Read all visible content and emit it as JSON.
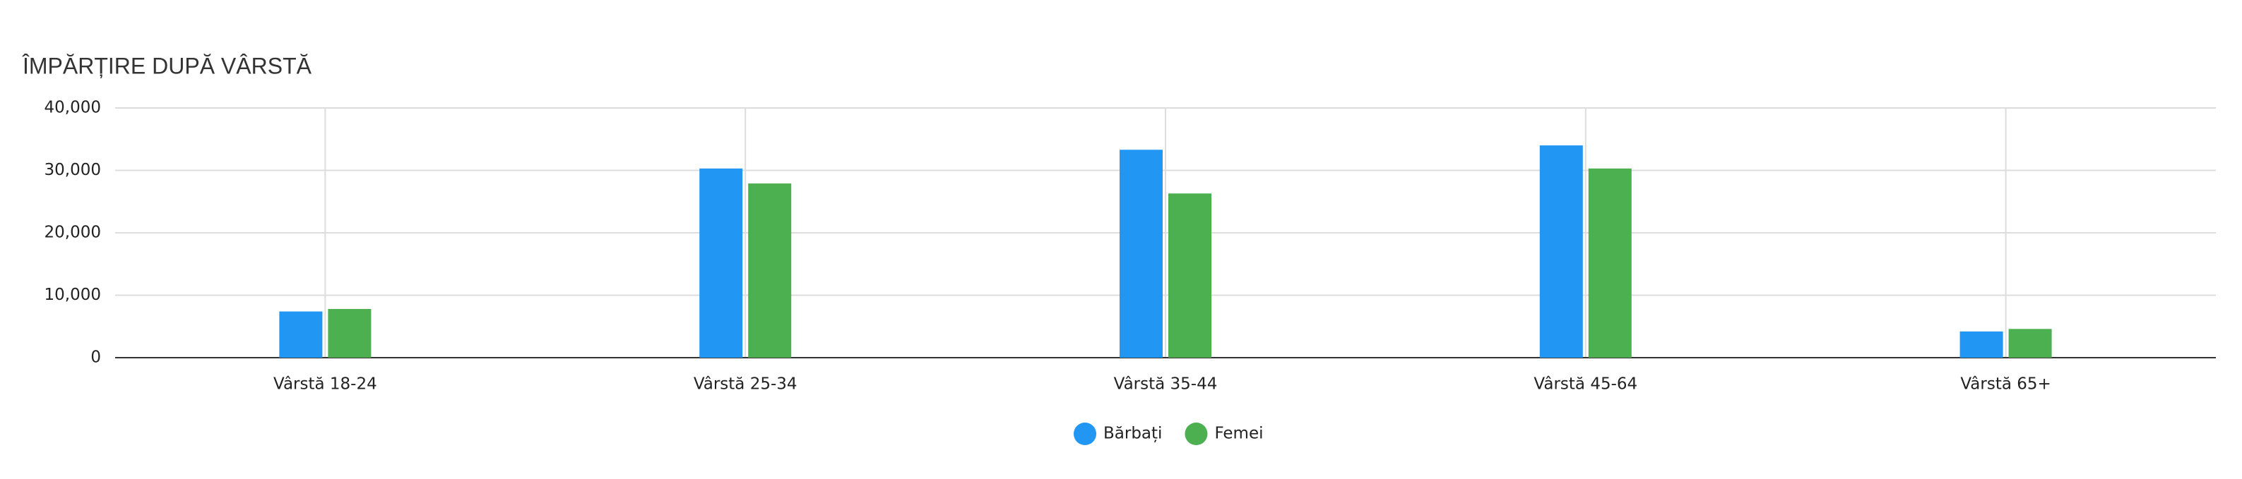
{
  "chart_data": {
    "type": "bar",
    "title": "ÎMPĂRȚIRE DUPĂ VÂRSTĂ",
    "categories": [
      "Vârstă 18-24",
      "Vârstă 25-34",
      "Vârstă 35-44",
      "Vârstă 45-64",
      "Vârstă 65+"
    ],
    "series": [
      {
        "name": "Bărbați",
        "color": "#2196f3",
        "values": [
          7400,
          30300,
          33300,
          34000,
          4200
        ]
      },
      {
        "name": "Femei",
        "color": "#4caf50",
        "values": [
          7800,
          27900,
          26300,
          30300,
          4600
        ]
      }
    ],
    "ylim": [
      0,
      40000
    ],
    "yticks": [
      0,
      {
        "value": 10000,
        "label": "10,000"
      },
      {
        "value": 20000,
        "label": "20,000"
      },
      {
        "value": 30000,
        "label": "30,000"
      },
      {
        "value": 40000,
        "label": "40,000"
      }
    ],
    "grid": true,
    "legend": "bottom"
  }
}
